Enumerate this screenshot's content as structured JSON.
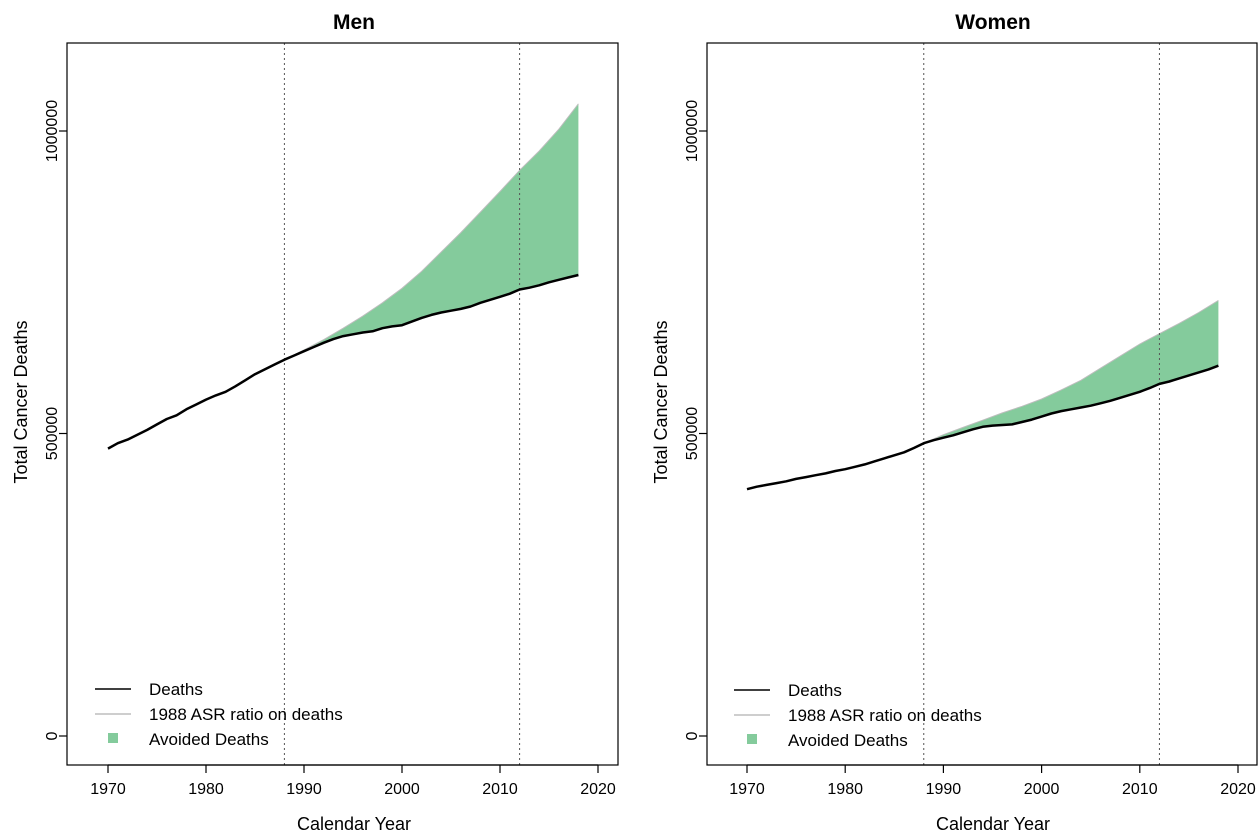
{
  "chart_data": [
    {
      "type": "area",
      "title": "Men",
      "xlabel": "Calendar Year",
      "ylabel": "Total Cancer Deaths",
      "xlim": [
        1970,
        2020
      ],
      "ylim": [
        0,
        1000000
      ],
      "x_ticks": [
        "1970",
        "1980",
        "1990",
        "2000",
        "2010",
        "2020"
      ],
      "y_ticks": [
        "0",
        "500000",
        "1000000"
      ],
      "vlines": [
        1988,
        2012
      ],
      "grid": false,
      "legend_position": "bottom-left",
      "legend": [
        "Deaths",
        "1988 ASR ratio on deaths",
        "Avoided Deaths"
      ],
      "colors": {
        "deaths": "#000000",
        "expected": "#bdbdbd",
        "avoided": "#84cb9c"
      },
      "series": [
        {
          "name": "Deaths",
          "x": [
            1970,
            1971,
            1972,
            1973,
            1974,
            1975,
            1976,
            1977,
            1978,
            1979,
            1980,
            1981,
            1982,
            1983,
            1984,
            1985,
            1986,
            1987,
            1988,
            1989,
            1990,
            1991,
            1992,
            1993,
            1994,
            1995,
            1996,
            1997,
            1998,
            1999,
            2000,
            2001,
            2002,
            2003,
            2004,
            2005,
            2006,
            2007,
            2008,
            2009,
            2010,
            2011,
            2012,
            2013,
            2014,
            2015,
            2016,
            2017,
            2018
          ],
          "values": [
            475000,
            484000,
            490000,
            498000,
            506000,
            515000,
            524000,
            530000,
            540000,
            548000,
            556000,
            563000,
            569000,
            578000,
            588000,
            598000,
            606000,
            614000,
            622000,
            629000,
            636000,
            643000,
            650000,
            656000,
            661000,
            664000,
            667000,
            669000,
            674000,
            677000,
            679000,
            685000,
            691000,
            696000,
            700000,
            703000,
            706000,
            710000,
            716000,
            721000,
            726000,
            731000,
            738000,
            741000,
            745000,
            750000,
            754000,
            758000,
            762000
          ]
        },
        {
          "name": "1988 ASR ratio on deaths",
          "x": [
            1988,
            1990,
            1992,
            1994,
            1996,
            1998,
            2000,
            2002,
            2004,
            2006,
            2008,
            2010,
            2012,
            2014,
            2016,
            2018
          ],
          "values": [
            622000,
            638000,
            655000,
            674000,
            694000,
            716000,
            740000,
            768000,
            800000,
            832000,
            866000,
            900000,
            935000,
            967000,
            1003000,
            1045000
          ]
        }
      ]
    },
    {
      "type": "area",
      "title": "Women",
      "xlabel": "Calendar Year",
      "ylabel": "Total Cancer Deaths",
      "xlim": [
        1970,
        2020
      ],
      "ylim": [
        0,
        1000000
      ],
      "x_ticks": [
        "1970",
        "1980",
        "1990",
        "2000",
        "2010",
        "2020"
      ],
      "y_ticks": [
        "0",
        "500000",
        "1000000"
      ],
      "vlines": [
        1988,
        2012
      ],
      "grid": false,
      "legend_position": "bottom-left",
      "legend": [
        "Deaths",
        "1988 ASR ratio on deaths",
        "Avoided Deaths"
      ],
      "colors": {
        "deaths": "#000000",
        "expected": "#bdbdbd",
        "avoided": "#84cb9c"
      },
      "series": [
        {
          "name": "Deaths",
          "x": [
            1970,
            1971,
            1972,
            1973,
            1974,
            1975,
            1976,
            1977,
            1978,
            1979,
            1980,
            1981,
            1982,
            1983,
            1984,
            1985,
            1986,
            1987,
            1988,
            1989,
            1990,
            1991,
            1992,
            1993,
            1994,
            1995,
            1996,
            1997,
            1998,
            1999,
            2000,
            2001,
            2002,
            2003,
            2004,
            2005,
            2006,
            2007,
            2008,
            2009,
            2010,
            2011,
            2012,
            2013,
            2014,
            2015,
            2016,
            2017,
            2018
          ],
          "values": [
            408000,
            412000,
            415000,
            418000,
            421000,
            425000,
            428000,
            431000,
            434000,
            438000,
            441000,
            445000,
            449000,
            454000,
            459000,
            464000,
            469000,
            476000,
            484000,
            489000,
            493000,
            497000,
            502000,
            507000,
            511000,
            513000,
            514000,
            515000,
            519000,
            523000,
            528000,
            533000,
            537000,
            540000,
            543000,
            546000,
            550000,
            554000,
            559000,
            564000,
            569000,
            575000,
            582000,
            586000,
            591000,
            596000,
            601000,
            606000,
            612000
          ]
        },
        {
          "name": "1988 ASR ratio on deaths",
          "x": [
            1988,
            1990,
            1992,
            1994,
            1996,
            1998,
            2000,
            2002,
            2004,
            2006,
            2008,
            2010,
            2012,
            2014,
            2016,
            2018
          ],
          "values": [
            484000,
            498000,
            510000,
            522000,
            534000,
            545000,
            557000,
            572000,
            588000,
            608000,
            628000,
            648000,
            665000,
            682000,
            700000,
            720000
          ]
        }
      ]
    }
  ]
}
